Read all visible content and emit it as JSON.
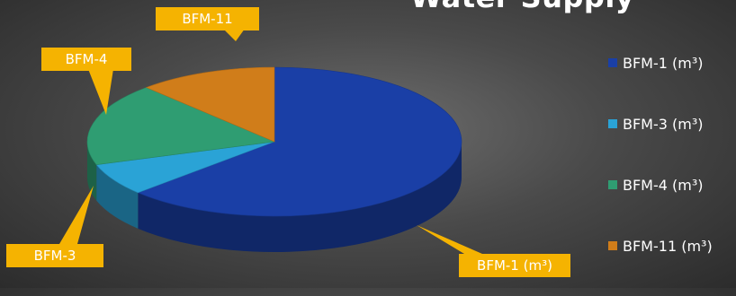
{
  "chart_data": {
    "type": "pie",
    "title": "Water Supply",
    "categories": [
      "BFM-1 (m³)",
      "BFM-3 (m³)",
      "BFM-4 (m³)",
      "BFM-11 (m³)"
    ],
    "values": [
      63,
      7,
      18,
      12
    ],
    "colors": [
      "#1a3fa6",
      "#2aa3d6",
      "#2f9d72",
      "#d07d1a"
    ],
    "data_labels": [
      "BFM-1 (m³)",
      "BFM-3",
      "BFM-4",
      "BFM-11"
    ],
    "legend_position": "right",
    "style": "3d"
  }
}
